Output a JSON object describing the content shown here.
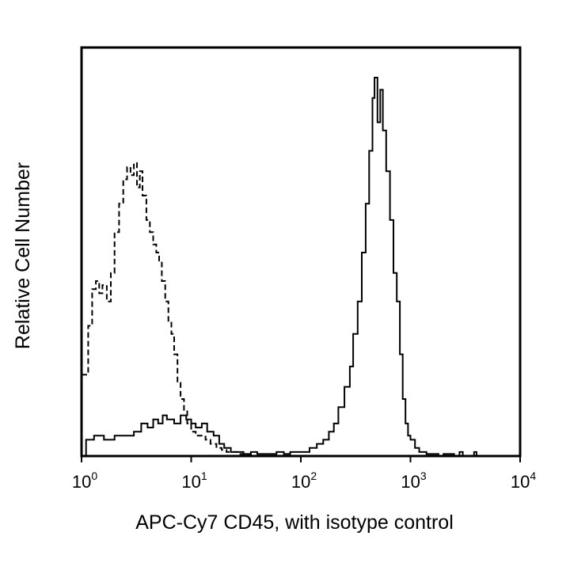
{
  "chart_data": {
    "type": "line",
    "xlabel": "APC-Cy7 CD45, with isotype control",
    "ylabel": "Relative Cell Number",
    "x_scale": "log",
    "xlim": [
      1,
      10000
    ],
    "ylim": [
      0,
      100
    ],
    "grid": false,
    "x_ticks": [
      {
        "value": 1,
        "base": "10",
        "exp": "0"
      },
      {
        "value": 10,
        "base": "10",
        "exp": "1"
      },
      {
        "value": 100,
        "base": "10",
        "exp": "2"
      },
      {
        "value": 1000,
        "base": "10",
        "exp": "3"
      },
      {
        "value": 10000,
        "base": "10",
        "exp": "4"
      }
    ],
    "series": [
      {
        "style": "dashed",
        "x": [
          1,
          1.15,
          1.25,
          1.35,
          1.45,
          1.55,
          1.7,
          1.85,
          2.0,
          2.2,
          2.4,
          2.6,
          2.8,
          3.0,
          3.2,
          3.4,
          3.6,
          3.9,
          4.2,
          4.5,
          4.8,
          5.1,
          5.4,
          5.8,
          6.2,
          6.6,
          7.0,
          7.5,
          8.0,
          8.6,
          9.2,
          10,
          11,
          12,
          13.5,
          15,
          17,
          19,
          21,
          24,
          27,
          30,
          35
        ],
        "y": [
          20,
          32,
          41,
          43,
          40,
          42,
          38,
          45,
          55,
          62,
          68,
          71,
          69,
          72,
          66,
          70,
          64,
          58,
          55,
          52,
          50,
          48,
          43,
          38,
          33,
          30,
          25,
          18,
          14,
          11,
          8,
          6,
          5,
          5,
          4,
          3,
          2,
          1.5,
          1,
          1,
          0.5,
          0.3,
          0
        ]
      },
      {
        "style": "solid",
        "x": [
          1,
          1.1,
          1.3,
          1.6,
          2.0,
          2.5,
          3.0,
          3.5,
          4.0,
          4.5,
          5.0,
          5.5,
          6.0,
          7.0,
          8.0,
          9.0,
          10,
          11,
          12.5,
          14,
          16,
          18,
          20,
          23,
          26,
          30,
          35,
          40,
          50,
          60,
          70,
          80,
          100,
          120,
          140,
          160,
          180,
          200,
          220,
          250,
          280,
          300,
          330,
          360,
          390,
          420,
          450,
          470,
          500,
          530,
          560,
          600,
          650,
          700,
          750,
          800,
          850,
          900,
          950,
          1000,
          1100,
          1200,
          1400,
          1600,
          1800,
          2000,
          2500,
          2800,
          3000,
          3500,
          3800,
          4000,
          10000
        ],
        "y": [
          0,
          4,
          5,
          4,
          5,
          5,
          6,
          8,
          7,
          9,
          8,
          10,
          9,
          8,
          10,
          9,
          8,
          7,
          8,
          6,
          5,
          3,
          2,
          1,
          1,
          0.5,
          1,
          0.5,
          0.5,
          1,
          0.5,
          1,
          1,
          2,
          3,
          4,
          6,
          8,
          12,
          17,
          22,
          30,
          38,
          50,
          62,
          75,
          88,
          93,
          82,
          90,
          80,
          70,
          58,
          45,
          38,
          25,
          14,
          8,
          5,
          4,
          2,
          1,
          0.5,
          0.5,
          0,
          0.5,
          0,
          1,
          0,
          0,
          1,
          0,
          0
        ]
      }
    ]
  }
}
